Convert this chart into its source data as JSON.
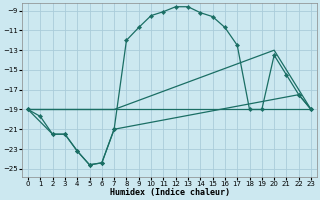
{
  "xlabel": "Humidex (Indice chaleur)",
  "bg_color": "#cce8f0",
  "grid_color": "#aaccda",
  "line_color": "#1a6e64",
  "xlim": [
    -0.5,
    23.5
  ],
  "ylim": [
    -25.8,
    -8.2
  ],
  "xticks": [
    0,
    1,
    2,
    3,
    4,
    5,
    6,
    7,
    8,
    9,
    10,
    11,
    12,
    13,
    14,
    15,
    16,
    17,
    18,
    19,
    20,
    21,
    22,
    23
  ],
  "yticks": [
    -9,
    -11,
    -13,
    -15,
    -17,
    -19,
    -21,
    -23,
    -25
  ],
  "curve1_x": [
    0,
    1,
    2,
    3,
    4,
    5,
    6,
    7,
    8,
    9,
    10,
    11,
    12,
    13,
    14,
    15,
    16,
    17,
    18,
    19,
    20,
    21,
    22,
    23
  ],
  "curve1_y": [
    -19.0,
    -19.7,
    -21.5,
    -21.5,
    -23.2,
    -24.6,
    -24.4,
    -21.0,
    -12.0,
    -10.7,
    -9.5,
    -9.1,
    -8.6,
    -8.6,
    -9.2,
    -9.6,
    -10.7,
    -12.5,
    -19.0,
    -19.0,
    -13.5,
    -15.5,
    -17.5,
    -19.0
  ],
  "curve2_x": [
    0,
    2,
    3,
    4,
    5,
    6,
    7,
    22,
    23
  ],
  "curve2_y": [
    -19.0,
    -21.5,
    -21.5,
    -23.2,
    -24.6,
    -24.4,
    -21.0,
    -17.5,
    -19.0
  ],
  "line3_x": [
    0,
    7,
    23
  ],
  "line3_y": [
    -19.0,
    -19.0,
    -19.0
  ],
  "line4_x": [
    0,
    7,
    20,
    23
  ],
  "line4_y": [
    -19.0,
    -19.0,
    -13.0,
    -19.0
  ]
}
